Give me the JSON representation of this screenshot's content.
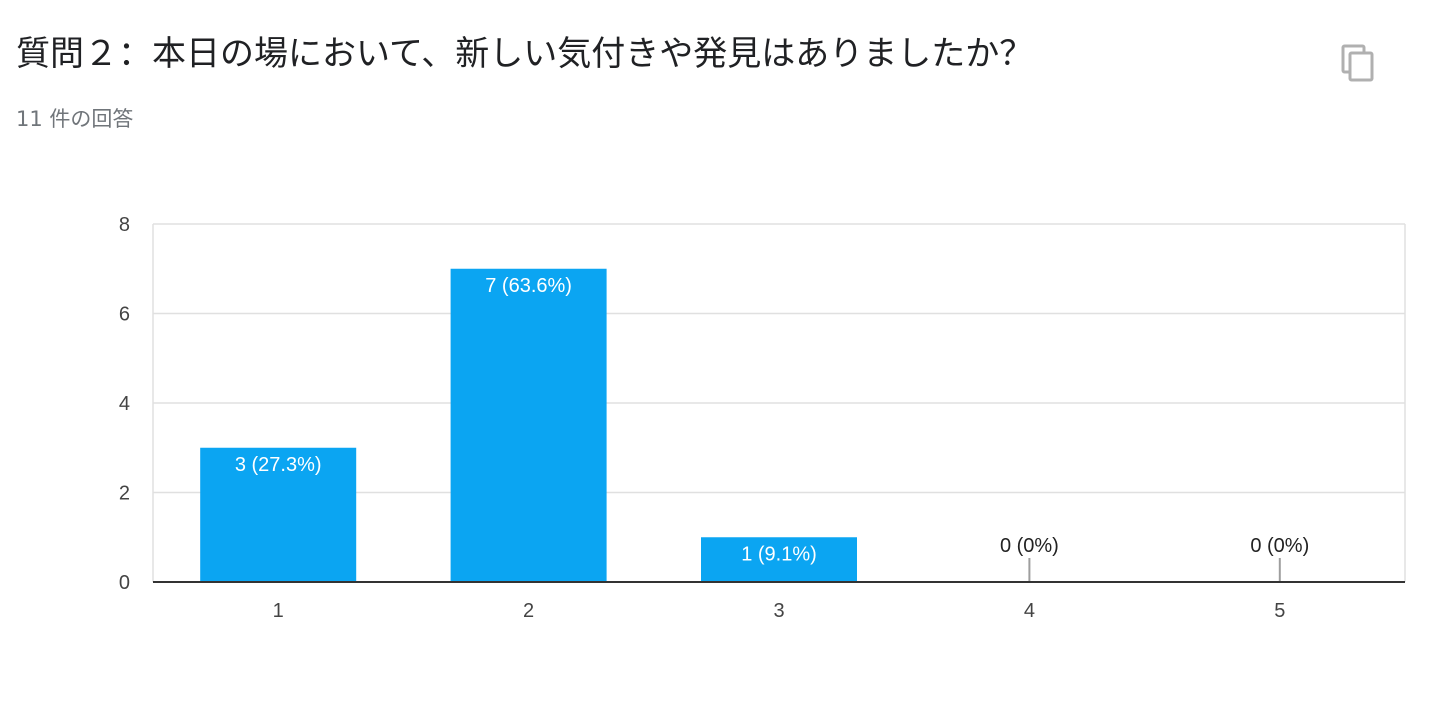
{
  "question": {
    "title": "質問２：本日の場において、新しい気付きや発見はありましたか？",
    "response_count": "11 件の回答"
  },
  "icons": {
    "copy": "copy-icon"
  },
  "colors": {
    "bar": "#0ba5f2",
    "grid": "#e0e0e0",
    "axis": "#333333",
    "label_inside": "#ffffff",
    "label_outside": "#222222"
  },
  "chart_data": {
    "type": "bar",
    "categories": [
      "1",
      "2",
      "3",
      "4",
      "5"
    ],
    "values": [
      3,
      7,
      1,
      0,
      0
    ],
    "data_labels": [
      "3 (27.3%)",
      "7 (63.6%)",
      "1 (9.1%)",
      "0 (0%)",
      "0 (0%)"
    ],
    "y_ticks": [
      "0",
      "2",
      "4",
      "6",
      "8"
    ],
    "ylim": [
      0,
      8
    ],
    "grid": true,
    "legend": "none"
  }
}
